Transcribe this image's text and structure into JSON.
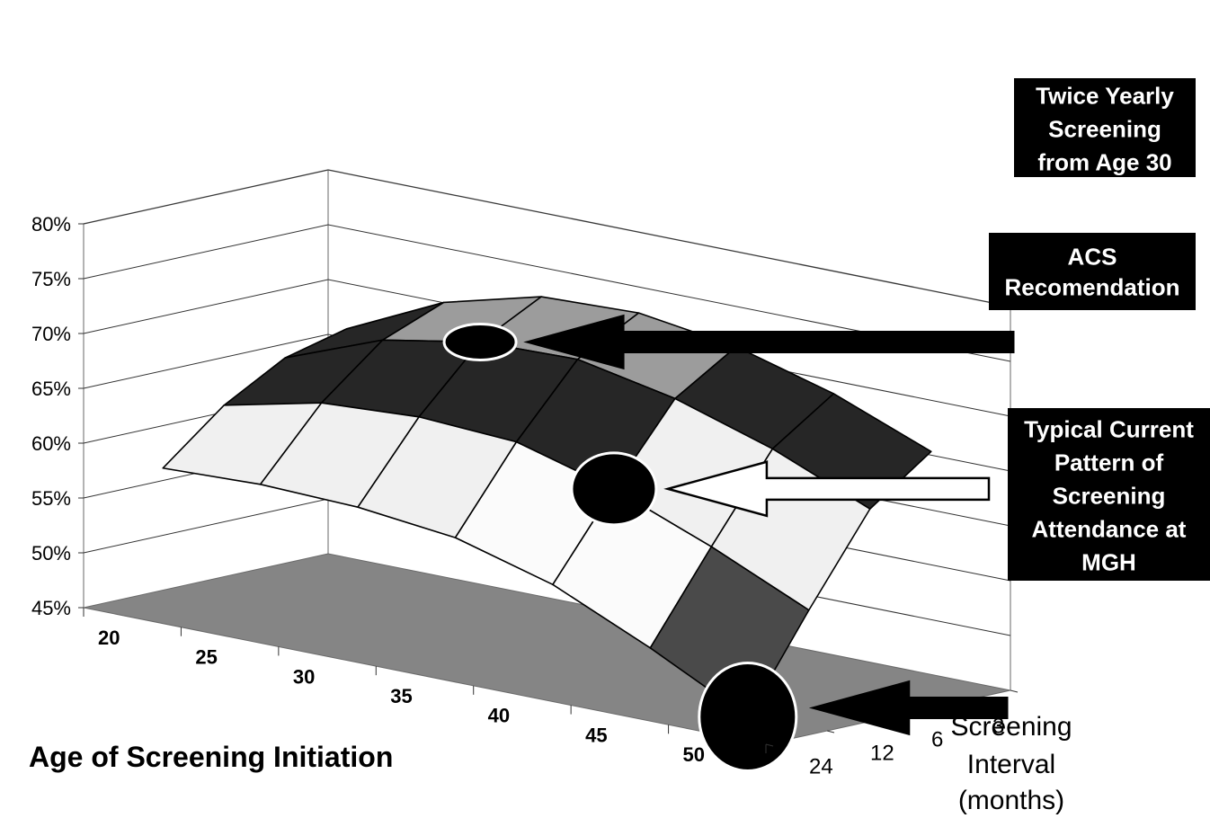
{
  "chart_data": {
    "type": "surface",
    "x_categories": [
      "20",
      "25",
      "30",
      "35",
      "40",
      "45",
      "50"
    ],
    "z_categories": [
      "3",
      "6",
      "12",
      "24"
    ],
    "y_ticks": [
      "80%",
      "75%",
      "70%",
      "65%",
      "60%",
      "55%",
      "50%",
      "45%"
    ],
    "ylim": [
      45,
      80
    ],
    "xlabel": "Age of Screening Initiation",
    "zlabel": [
      "Screening",
      "Interval",
      "(months)"
    ],
    "values_percent": {
      "3": [
        67.0,
        71.2,
        73.5,
        73.8,
        72.5,
        70.0,
        66.5
      ],
      "6": [
        65.6,
        69.0,
        70.6,
        70.8,
        69.0,
        66.2,
        62.5
      ],
      "12": [
        62.5,
        64.5,
        65.0,
        64.5,
        62.0,
        58.5,
        54.5
      ],
      "24": [
        58.0,
        58.3,
        58.0,
        57.0,
        54.5,
        50.5,
        46.0
      ]
    },
    "color_bands": [
      {
        "from": 45,
        "to": 55,
        "color": "#4a4a4a"
      },
      {
        "from": 55,
        "to": 60,
        "color": "#fbfbfb"
      },
      {
        "from": 60,
        "to": 65,
        "color": "#f0f0f0"
      },
      {
        "from": 65,
        "to": 70,
        "color": "#262626"
      },
      {
        "from": 70,
        "to": 75,
        "color": "#9c9c9c"
      },
      {
        "from": 75,
        "to": 80,
        "color": "#5a5a5a"
      }
    ],
    "floor_color": "#858585",
    "grid": true,
    "annotations": [
      {
        "id": "twice-yearly",
        "lines": [
          "Twice Yearly",
          "Screening",
          "from Age 30"
        ],
        "age": "30",
        "interval": "6",
        "arrow_style": "solid"
      },
      {
        "id": "acs",
        "lines": [
          "ACS",
          "Recomendation"
        ],
        "age": "40",
        "interval": "12",
        "arrow_style": "outline"
      },
      {
        "id": "typical",
        "lines": [
          "Typical Current",
          "Pattern of",
          "Screening",
          "Attendance at",
          "MGH"
        ],
        "age": "50",
        "interval": "24",
        "arrow_style": "solid"
      }
    ]
  }
}
